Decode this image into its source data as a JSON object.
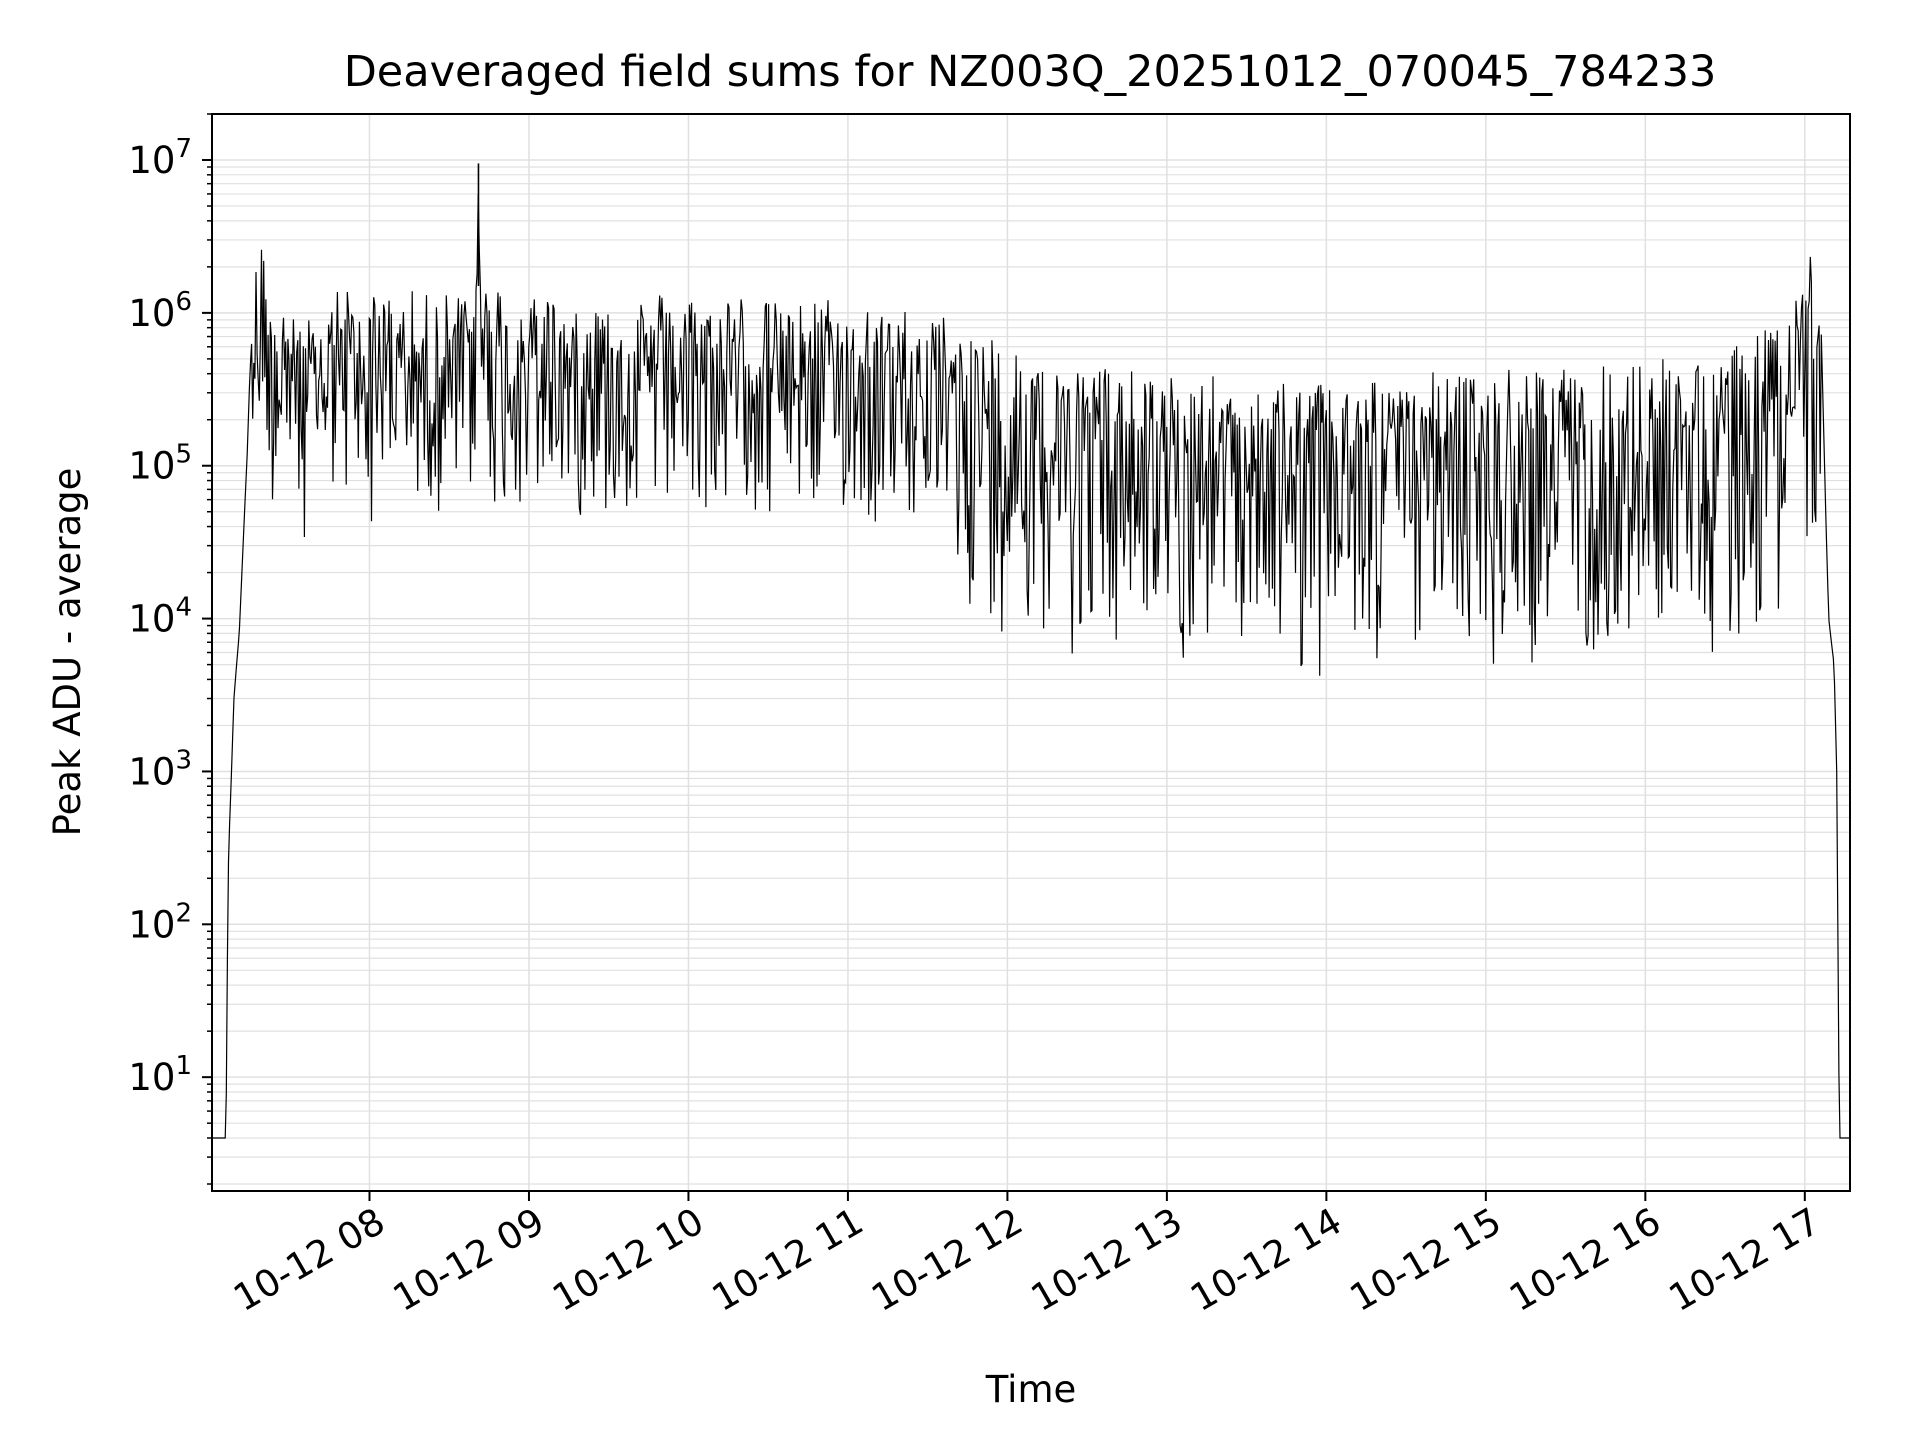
{
  "chart_data": {
    "type": "line",
    "title": "Deaveraged field sums for NZ003Q_20251012_070045_784233",
    "xlabel": "Time",
    "ylabel": "Peak ADU - average",
    "yscale": "log",
    "ylim": [
      1.8,
      20000000
    ],
    "xlim": [
      "2025-10-12 07:00:45",
      "2025-10-12 17:17:00"
    ],
    "grid": true,
    "line_color": "#000000",
    "grid_color": "#e0e0e0",
    "x_ticks": [
      {
        "t": "2025-10-12 08:00",
        "label": "10-12 08"
      },
      {
        "t": "2025-10-12 09:00",
        "label": "10-12 09"
      },
      {
        "t": "2025-10-12 10:00",
        "label": "10-12 10"
      },
      {
        "t": "2025-10-12 11:00",
        "label": "10-12 11"
      },
      {
        "t": "2025-10-12 12:00",
        "label": "10-12 12"
      },
      {
        "t": "2025-10-12 13:00",
        "label": "10-12 13"
      },
      {
        "t": "2025-10-12 14:00",
        "label": "10-12 14"
      },
      {
        "t": "2025-10-12 15:00",
        "label": "10-12 15"
      },
      {
        "t": "2025-10-12 16:00",
        "label": "10-12 16"
      },
      {
        "t": "2025-10-12 17:00",
        "label": "10-12 17"
      }
    ],
    "y_ticks": [
      {
        "value": 10,
        "base": "10",
        "exp": "1"
      },
      {
        "value": 100,
        "base": "10",
        "exp": "2"
      },
      {
        "value": 1000,
        "base": "10",
        "exp": "3"
      },
      {
        "value": 10000,
        "base": "10",
        "exp": "4"
      },
      {
        "value": 100000,
        "base": "10",
        "exp": "5"
      },
      {
        "value": 1000000,
        "base": "10",
        "exp": "6"
      },
      {
        "value": 10000000,
        "base": "10",
        "exp": "7"
      }
    ],
    "series": [
      {
        "x": [
          "2025-10-12 07:00:45",
          "2025-10-12 07:06:00",
          "2025-10-12 07:06:30",
          "2025-10-12 07:07:00",
          "2025-10-12 07:08:00",
          "2025-10-12 07:09:00",
          "2025-10-12 07:10:00",
          "2025-10-12 07:11:00",
          "2025-10-12 07:12:00",
          "2025-10-12 07:13:00",
          "2025-10-12 07:14:00",
          "2025-10-12 07:15:00",
          "2025-10-12 07:16:00",
          "2025-10-12 07:17:00",
          "2025-10-12 07:18:00",
          "2025-10-12 07:20:00",
          "2025-10-12 07:22:00",
          "2025-10-12 07:24:00",
          "2025-10-12 07:27:00",
          "2025-10-12 07:30:00",
          "2025-10-12 07:35:00",
          "2025-10-12 07:40:00",
          "2025-10-12 07:45:00",
          "2025-10-12 07:50:00",
          "2025-10-12 07:55:00",
          "2025-10-12 08:00:00",
          "2025-10-12 08:10:00",
          "2025-10-12 08:20:00",
          "2025-10-12 08:30:00",
          "2025-10-12 08:40:00",
          "2025-10-12 08:41:00",
          "2025-10-12 08:42:00",
          "2025-10-12 08:50:00",
          "2025-10-12 09:00:00",
          "2025-10-12 09:30:00",
          "2025-10-12 10:00:00",
          "2025-10-12 10:30:00",
          "2025-10-12 11:00:00",
          "2025-10-12 11:30:00",
          "2025-10-12 12:00:00",
          "2025-10-12 12:30:00",
          "2025-10-12 13:00:00",
          "2025-10-12 13:30:00",
          "2025-10-12 14:00:00",
          "2025-10-12 14:30:00",
          "2025-10-12 15:00:00",
          "2025-10-12 15:30:00",
          "2025-10-12 16:00:00",
          "2025-10-12 16:30:00",
          "2025-10-12 16:45:00",
          "2025-10-12 16:55:00",
          "2025-10-12 17:00:00",
          "2025-10-12 17:02:00",
          "2025-10-12 17:04:00",
          "2025-10-12 17:06:00",
          "2025-10-12 17:07:00",
          "2025-10-12 17:08:00",
          "2025-10-12 17:09:00",
          "2025-10-12 17:10:00",
          "2025-10-12 17:11:00",
          "2025-10-12 17:12:00",
          "2025-10-12 17:13:00",
          "2025-10-12 17:17:00"
        ],
        "y": [
          4,
          4,
          50,
          300,
          900,
          3000,
          5000,
          8000,
          20000,
          50000,
          120000,
          400000,
          800000,
          1300000,
          2000000,
          2500000,
          1200000,
          900000,
          1100000,
          1000000,
          600000,
          700000,
          1000000,
          1100000,
          900000,
          1000000,
          1000000,
          900000,
          1000000,
          1200000,
          9500000,
          1500000,
          1000000,
          1000000,
          900000,
          950000,
          900000,
          850000,
          700000,
          500000,
          350000,
          280000,
          250000,
          260000,
          280000,
          300000,
          320000,
          350000,
          400000,
          600000,
          900000,
          1500000,
          2500000,
          1800000,
          1000000,
          200000,
          40000,
          10000,
          7000,
          5000,
          1000,
          4,
          4
        ]
      }
    ]
  }
}
